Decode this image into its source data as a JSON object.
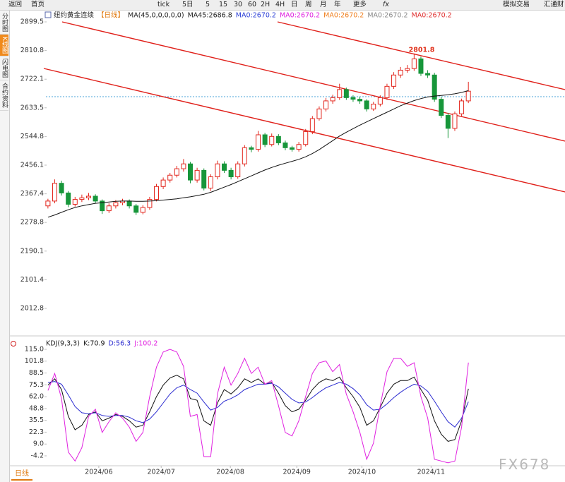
{
  "toolbar": [
    "返回",
    "首页",
    "tick",
    "5日",
    "5",
    "15",
    "30",
    "60",
    "2H",
    "4H",
    "日",
    "周",
    "月",
    "年",
    "更多",
    "fx",
    "模拟交易",
    "汇通财"
  ],
  "side_tabs": [
    "分时图",
    "K线图",
    "闪电图",
    "合约资料"
  ],
  "bottom_tab": "日线",
  "watermark": "FX678",
  "chart_data": [
    {
      "type": "candlestick",
      "title": "纽约黄金连续",
      "period": "【日线】",
      "legend": [
        {
          "text": "MA(45,0,0,0,0,0)",
          "color": "#222222"
        },
        {
          "text": "MA45:2686.8",
          "color": "#222222"
        },
        {
          "text": "MA0:2670.2",
          "color": "#2b3fd6"
        },
        {
          "text": "MA0:2670.2",
          "color": "#e020e0"
        },
        {
          "text": "MA0:2670.2",
          "color": "#f08020"
        },
        {
          "text": "MA0:2670.2",
          "color": "#888888"
        },
        {
          "text": "MA0:2670.2",
          "color": "#e03030"
        }
      ],
      "annotation": "2801.8",
      "up_color": "#e3261d",
      "down_color": "#17963a",
      "candles": [
        [
          2330,
          2352,
          2322,
          2345
        ],
        [
          2345,
          2412,
          2338,
          2400
        ],
        [
          2400,
          2408,
          2362,
          2370
        ],
        [
          2370,
          2376,
          2326,
          2335
        ],
        [
          2335,
          2358,
          2328,
          2350
        ],
        [
          2350,
          2365,
          2342,
          2355
        ],
        [
          2355,
          2370,
          2348,
          2360
        ],
        [
          2360,
          2366,
          2338,
          2345
        ],
        [
          2345,
          2350,
          2305,
          2315
        ],
        [
          2315,
          2338,
          2308,
          2330
        ],
        [
          2330,
          2348,
          2322,
          2340
        ],
        [
          2340,
          2352,
          2332,
          2345
        ],
        [
          2345,
          2350,
          2322,
          2330
        ],
        [
          2330,
          2336,
          2302,
          2310
        ],
        [
          2310,
          2332,
          2304,
          2325
        ],
        [
          2325,
          2358,
          2318,
          2350
        ],
        [
          2350,
          2398,
          2344,
          2390
        ],
        [
          2390,
          2418,
          2382,
          2410
        ],
        [
          2410,
          2432,
          2402,
          2425
        ],
        [
          2425,
          2454,
          2418,
          2445
        ],
        [
          2445,
          2475,
          2436,
          2460
        ],
        [
          2460,
          2466,
          2400,
          2410
        ],
        [
          2410,
          2448,
          2402,
          2440
        ],
        [
          2440,
          2446,
          2378,
          2385
        ],
        [
          2385,
          2428,
          2376,
          2420
        ],
        [
          2420,
          2470,
          2412,
          2460
        ],
        [
          2460,
          2468,
          2432,
          2440
        ],
        [
          2440,
          2448,
          2412,
          2420
        ],
        [
          2420,
          2468,
          2414,
          2460
        ],
        [
          2460,
          2518,
          2452,
          2510
        ],
        [
          2510,
          2516,
          2496,
          2505
        ],
        [
          2505,
          2562,
          2498,
          2550
        ],
        [
          2550,
          2556,
          2512,
          2520
        ],
        [
          2520,
          2554,
          2514,
          2545
        ],
        [
          2545,
          2552,
          2518,
          2525
        ],
        [
          2525,
          2532,
          2502,
          2510
        ],
        [
          2510,
          2516,
          2498,
          2505
        ],
        [
          2505,
          2528,
          2498,
          2520
        ],
        [
          2520,
          2568,
          2514,
          2560
        ],
        [
          2560,
          2608,
          2552,
          2600
        ],
        [
          2600,
          2638,
          2594,
          2630
        ],
        [
          2630,
          2664,
          2622,
          2655
        ],
        [
          2655,
          2674,
          2646,
          2665
        ],
        [
          2665,
          2708,
          2658,
          2690
        ],
        [
          2690,
          2696,
          2658,
          2665
        ],
        [
          2665,
          2672,
          2652,
          2660
        ],
        [
          2660,
          2668,
          2646,
          2655
        ],
        [
          2655,
          2660,
          2622,
          2630
        ],
        [
          2630,
          2652,
          2624,
          2645
        ],
        [
          2645,
          2672,
          2638,
          2665
        ],
        [
          2665,
          2708,
          2658,
          2700
        ],
        [
          2700,
          2744,
          2692,
          2735
        ],
        [
          2735,
          2760,
          2726,
          2750
        ],
        [
          2750,
          2766,
          2742,
          2755
        ],
        [
          2755,
          2801.8,
          2748,
          2785
        ],
        [
          2785,
          2792,
          2732,
          2740
        ],
        [
          2740,
          2750,
          2726,
          2735
        ],
        [
          2735,
          2742,
          2652,
          2660
        ],
        [
          2660,
          2668,
          2602,
          2610
        ],
        [
          2610,
          2618,
          2540,
          2570
        ],
        [
          2570,
          2622,
          2562,
          2615
        ],
        [
          2615,
          2662,
          2608,
          2655
        ],
        [
          2655,
          2714,
          2648,
          2685
        ]
      ],
      "ma": {
        "color": "#111111",
        "values": [
          2295,
          2302,
          2310,
          2318,
          2325,
          2330,
          2334,
          2338,
          2340,
          2342,
          2344,
          2345,
          2345,
          2344,
          2344,
          2345,
          2346,
          2348,
          2350,
          2352,
          2355,
          2358,
          2362,
          2366,
          2372,
          2380,
          2388,
          2396,
          2405,
          2414,
          2423,
          2432,
          2441,
          2449,
          2456,
          2462,
          2468,
          2474,
          2482,
          2492,
          2504,
          2518,
          2532,
          2546,
          2558,
          2569,
          2580,
          2590,
          2600,
          2610,
          2620,
          2630,
          2640,
          2648,
          2656,
          2662,
          2667,
          2670,
          2672,
          2674,
          2677,
          2681,
          2686.8
        ]
      },
      "xlim": [
        -0.3,
        76.25
      ],
      "ylim": [
        1940.7,
        2923.5
      ],
      "yticks": [
        2899.5,
        2810.8,
        2722.1,
        2633.5,
        2544.8,
        2456.1,
        2367.4,
        2278.8,
        2190.1,
        2101.4,
        2012.8
      ],
      "xticks": [
        {
          "value": 7.5,
          "label": "2024/06"
        },
        {
          "value": 16.7,
          "label": "2024/07"
        },
        {
          "value": 26.9,
          "label": "2024/08"
        },
        {
          "value": 36.7,
          "label": "2024/09"
        },
        {
          "value": 46.3,
          "label": "2024/10"
        },
        {
          "value": 56.5,
          "label": "2024/11"
        }
      ]
    },
    {
      "type": "line",
      "title": "KDJ(9,3,3)",
      "series": [
        {
          "name": "K:70.9",
          "color": "#111111",
          "values": [
            75,
            82,
            70,
            40,
            25,
            30,
            42,
            45,
            35,
            38,
            42,
            40,
            35,
            28,
            30,
            45,
            62,
            75,
            83,
            86,
            82,
            60,
            58,
            35,
            30,
            55,
            70,
            65,
            72,
            82,
            78,
            82,
            76,
            78,
            66,
            52,
            45,
            48,
            58,
            70,
            78,
            82,
            80,
            84,
            72,
            62,
            50,
            30,
            35,
            50,
            66,
            76,
            80,
            80,
            84,
            70,
            58,
            35,
            20,
            12,
            14,
            35,
            70.9
          ]
        },
        {
          "name": "D:56.3",
          "color": "#2b2bd0",
          "values": [
            78,
            79,
            76,
            64,
            51,
            44,
            43,
            44,
            41,
            40,
            41,
            41,
            39,
            35,
            33,
            37,
            45,
            55,
            65,
            72,
            75,
            70,
            66,
            56,
            47,
            50,
            57,
            60,
            64,
            70,
            73,
            76,
            76,
            77,
            73,
            66,
            59,
            55,
            56,
            61,
            67,
            72,
            75,
            78,
            76,
            71,
            64,
            53,
            47,
            48,
            54,
            61,
            67,
            72,
            76,
            74,
            68,
            57,
            45,
            34,
            28,
            38,
            56.3
          ]
        },
        {
          "name": "J:100.2",
          "color": "#e020e0",
          "values": [
            69,
            88,
            60,
            0,
            -10,
            5,
            40,
            48,
            22,
            34,
            44,
            38,
            28,
            12,
            22,
            62,
            95,
            112,
            115,
            112,
            96,
            40,
            42,
            -5,
            -5,
            65,
            95,
            75,
            88,
            105,
            88,
            95,
            76,
            80,
            52,
            22,
            18,
            35,
            62,
            88,
            100,
            102,
            90,
            98,
            65,
            45,
            22,
            -8,
            10,
            52,
            90,
            105,
            105,
            96,
            100,
            62,
            38,
            -8,
            -10,
            -12,
            -10,
            28,
            100.2
          ]
        }
      ],
      "xlim": [
        -0.3,
        76.25
      ],
      "ylim": [
        -15.3,
        123.7
      ],
      "yticks": [
        {
          "value": 115,
          "label": "115.0"
        },
        101.8,
        88.5,
        75.3,
        {
          "value": 62,
          "label": "62.0"
        },
        48.8,
        35.5,
        22.3,
        {
          "value": 9,
          "label": "9.0"
        },
        -4.2
      ]
    }
  ]
}
